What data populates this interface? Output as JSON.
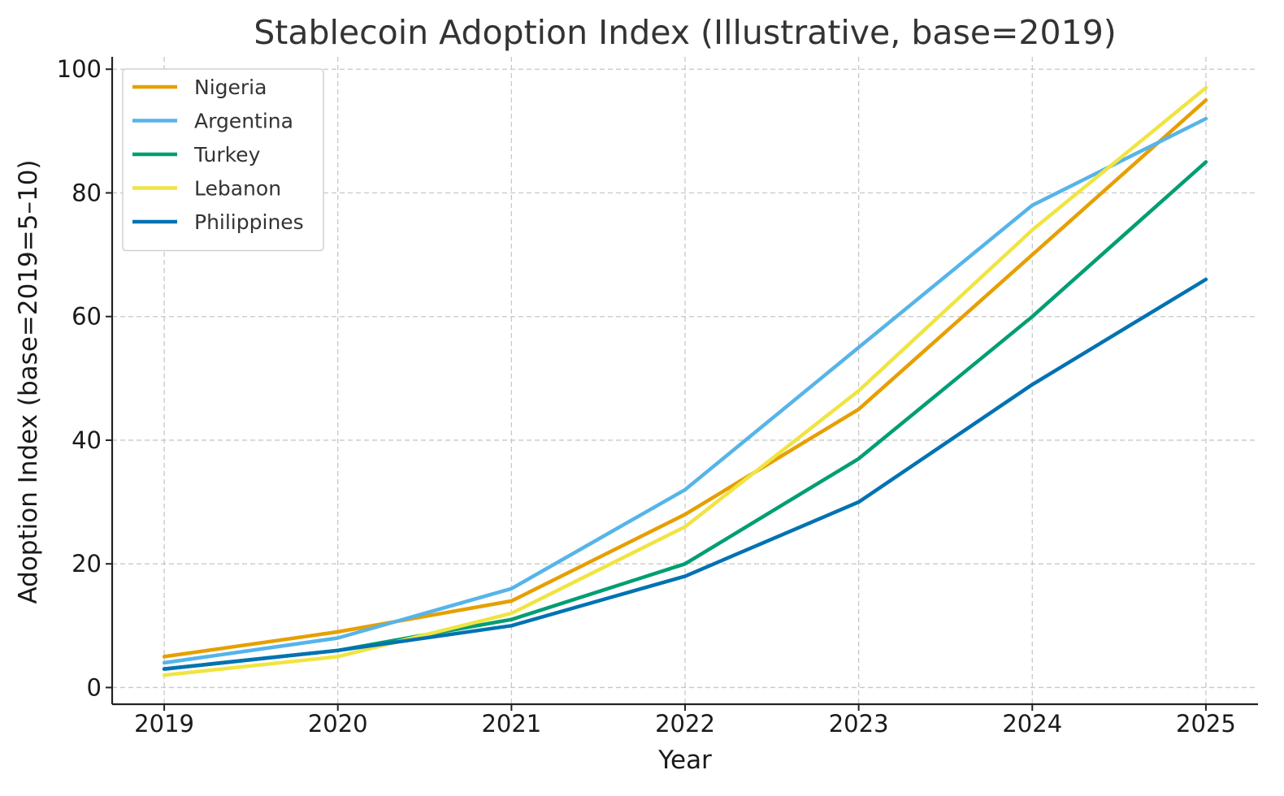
{
  "chart_data": {
    "type": "line",
    "title": "Stablecoin Adoption Index (Illustrative, base=2019)",
    "xlabel": "Year",
    "ylabel": "Adoption Index (base=2019=5–10)",
    "x": [
      2019,
      2020,
      2021,
      2022,
      2023,
      2024,
      2025
    ],
    "x_tick_labels": [
      "2019",
      "2020",
      "2021",
      "2022",
      "2023",
      "2024",
      "2025"
    ],
    "xlim": [
      2018.7,
      2025.3
    ],
    "ylim": [
      -2.7,
      102
    ],
    "y_ticks": [
      0,
      20,
      40,
      60,
      80,
      100
    ],
    "y_tick_labels": [
      "0",
      "20",
      "40",
      "60",
      "80",
      "100"
    ],
    "grid": true,
    "legend_position": "top-left",
    "series": [
      {
        "name": "Nigeria",
        "color": "#E69F00",
        "values": [
          5,
          9,
          14,
          28,
          45,
          70,
          95
        ]
      },
      {
        "name": "Argentina",
        "color": "#56B4E9",
        "values": [
          4,
          8,
          16,
          32,
          55,
          78,
          92
        ]
      },
      {
        "name": "Turkey",
        "color": "#009E73",
        "values": [
          3,
          6,
          11,
          20,
          37,
          60,
          85
        ]
      },
      {
        "name": "Lebanon",
        "color": "#F0E442",
        "values": [
          2,
          5,
          12,
          26,
          48,
          74,
          97
        ]
      },
      {
        "name": "Philippines",
        "color": "#0072B2",
        "values": [
          3,
          6,
          10,
          18,
          30,
          49,
          66
        ]
      }
    ]
  }
}
